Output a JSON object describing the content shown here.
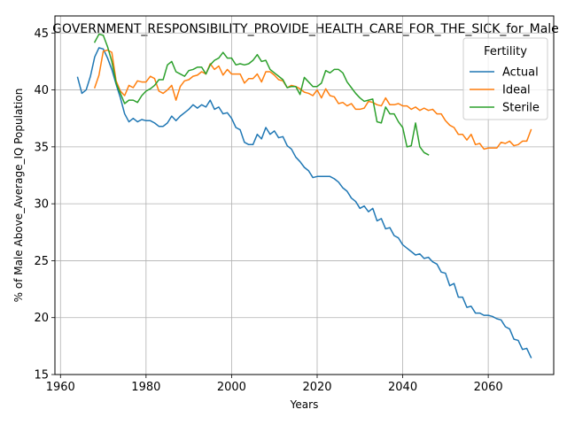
{
  "chart_data": {
    "type": "line",
    "title": "GOVERNMENT_RESPONSIBILITY_PROVIDE_HEALTH_CARE_FOR_THE_SICK_for_Male",
    "xlabel": "Years",
    "ylabel": "% of Male Above_Average_IQ Population",
    "xlim": [
      1958.7,
      2075.3
    ],
    "ylim": [
      15,
      46.5
    ],
    "xticks": [
      1960,
      1980,
      2000,
      2020,
      2040,
      2060
    ],
    "yticks": [
      15,
      20,
      25,
      30,
      35,
      40,
      45
    ],
    "grid": true,
    "legend": {
      "title": "Fertility",
      "placement": "top-right"
    },
    "series": [
      {
        "name": "Actual",
        "color": "#1f77b4",
        "points": [
          [
            1964,
            41.1
          ],
          [
            1965,
            39.7
          ],
          [
            1966,
            40.0
          ],
          [
            1967,
            41.2
          ],
          [
            1968,
            42.9
          ],
          [
            1969,
            43.7
          ],
          [
            1970,
            43.6
          ],
          [
            1971,
            42.8
          ],
          [
            1972,
            41.8
          ],
          [
            1973,
            40.5
          ],
          [
            1974,
            39.3
          ],
          [
            1975,
            37.9
          ],
          [
            1976,
            37.2
          ],
          [
            1977,
            37.5
          ],
          [
            1978,
            37.2
          ],
          [
            1979,
            37.4
          ],
          [
            1980,
            37.3
          ],
          [
            1981,
            37.3
          ],
          [
            1982,
            37.1
          ],
          [
            1983,
            36.8
          ],
          [
            1984,
            36.8
          ],
          [
            1985,
            37.1
          ],
          [
            1986,
            37.7
          ],
          [
            1987,
            37.3
          ],
          [
            1988,
            37.7
          ],
          [
            1989,
            38.0
          ],
          [
            1990,
            38.3
          ],
          [
            1991,
            38.7
          ],
          [
            1992,
            38.4
          ],
          [
            1993,
            38.7
          ],
          [
            1994,
            38.5
          ],
          [
            1995,
            39.1
          ],
          [
            1996,
            38.3
          ],
          [
            1997,
            38.5
          ],
          [
            1998,
            37.9
          ],
          [
            1999,
            38.0
          ],
          [
            2000,
            37.5
          ],
          [
            2001,
            36.7
          ],
          [
            2002,
            36.5
          ],
          [
            2003,
            35.4
          ],
          [
            2004,
            35.2
          ],
          [
            2005,
            35.2
          ],
          [
            2006,
            36.1
          ],
          [
            2007,
            35.7
          ],
          [
            2008,
            36.7
          ],
          [
            2009,
            36.1
          ],
          [
            2010,
            36.4
          ],
          [
            2011,
            35.8
          ],
          [
            2012,
            35.9
          ],
          [
            2013,
            35.1
          ],
          [
            2014,
            34.8
          ],
          [
            2015,
            34.1
          ],
          [
            2016,
            33.7
          ],
          [
            2017,
            33.2
          ],
          [
            2018,
            32.9
          ],
          [
            2019,
            32.3
          ],
          [
            2020,
            32.4
          ],
          [
            2021,
            32.4
          ],
          [
            2022,
            32.4
          ],
          [
            2023,
            32.4
          ],
          [
            2024,
            32.2
          ],
          [
            2025,
            31.9
          ],
          [
            2026,
            31.4
          ],
          [
            2027,
            31.1
          ],
          [
            2028,
            30.5
          ],
          [
            2029,
            30.2
          ],
          [
            2030,
            29.6
          ],
          [
            2031,
            29.8
          ],
          [
            2032,
            29.3
          ],
          [
            2033,
            29.6
          ],
          [
            2034,
            28.5
          ],
          [
            2035,
            28.7
          ],
          [
            2036,
            27.8
          ],
          [
            2037,
            27.9
          ],
          [
            2038,
            27.2
          ],
          [
            2039,
            27.0
          ],
          [
            2040,
            26.4
          ],
          [
            2041,
            26.1
          ],
          [
            2042,
            25.8
          ],
          [
            2043,
            25.5
          ],
          [
            2044,
            25.6
          ],
          [
            2045,
            25.2
          ],
          [
            2046,
            25.3
          ],
          [
            2047,
            24.9
          ],
          [
            2048,
            24.7
          ],
          [
            2049,
            24.0
          ],
          [
            2050,
            23.9
          ],
          [
            2051,
            22.8
          ],
          [
            2052,
            23.0
          ],
          [
            2053,
            21.8
          ],
          [
            2054,
            21.8
          ],
          [
            2055,
            20.9
          ],
          [
            2056,
            21.0
          ],
          [
            2057,
            20.4
          ],
          [
            2058,
            20.4
          ],
          [
            2059,
            20.2
          ],
          [
            2060,
            20.2
          ],
          [
            2061,
            20.1
          ],
          [
            2062,
            19.9
          ],
          [
            2063,
            19.8
          ],
          [
            2064,
            19.2
          ],
          [
            2065,
            19.0
          ],
          [
            2066,
            18.1
          ],
          [
            2067,
            18.0
          ],
          [
            2068,
            17.2
          ],
          [
            2069,
            17.3
          ],
          [
            2070,
            16.5
          ]
        ]
      },
      {
        "name": "Ideal",
        "color": "#ff7f0e",
        "points": [
          [
            1968,
            40.2
          ],
          [
            1969,
            41.3
          ],
          [
            1970,
            43.4
          ],
          [
            1971,
            43.5
          ],
          [
            1972,
            43.3
          ],
          [
            1973,
            40.8
          ],
          [
            1974,
            39.9
          ],
          [
            1975,
            39.5
          ],
          [
            1976,
            40.4
          ],
          [
            1977,
            40.2
          ],
          [
            1978,
            40.8
          ],
          [
            1979,
            40.7
          ],
          [
            1980,
            40.7
          ],
          [
            1981,
            41.2
          ],
          [
            1982,
            41.0
          ],
          [
            1983,
            39.9
          ],
          [
            1984,
            39.7
          ],
          [
            1985,
            40.0
          ],
          [
            1986,
            40.4
          ],
          [
            1987,
            39.1
          ],
          [
            1988,
            40.3
          ],
          [
            1989,
            40.8
          ],
          [
            1990,
            40.9
          ],
          [
            1991,
            41.2
          ],
          [
            1992,
            41.3
          ],
          [
            1993,
            41.6
          ],
          [
            1994,
            41.4
          ],
          [
            1995,
            42.3
          ],
          [
            1996,
            41.8
          ],
          [
            1997,
            42.1
          ],
          [
            1998,
            41.3
          ],
          [
            1999,
            41.8
          ],
          [
            2000,
            41.4
          ],
          [
            2001,
            41.4
          ],
          [
            2002,
            41.4
          ],
          [
            2003,
            40.6
          ],
          [
            2004,
            41.0
          ],
          [
            2005,
            41.0
          ],
          [
            2006,
            41.4
          ],
          [
            2007,
            40.7
          ],
          [
            2008,
            41.6
          ],
          [
            2009,
            41.6
          ],
          [
            2010,
            41.3
          ],
          [
            2011,
            40.9
          ],
          [
            2012,
            40.8
          ],
          [
            2013,
            40.2
          ],
          [
            2014,
            40.4
          ],
          [
            2015,
            40.3
          ],
          [
            2016,
            40.1
          ],
          [
            2017,
            39.8
          ],
          [
            2018,
            39.7
          ],
          [
            2019,
            39.5
          ],
          [
            2020,
            40.0
          ],
          [
            2021,
            39.3
          ],
          [
            2022,
            40.1
          ],
          [
            2023,
            39.5
          ],
          [
            2024,
            39.4
          ],
          [
            2025,
            38.8
          ],
          [
            2026,
            38.9
          ],
          [
            2027,
            38.6
          ],
          [
            2028,
            38.8
          ],
          [
            2029,
            38.3
          ],
          [
            2030,
            38.3
          ],
          [
            2031,
            38.4
          ],
          [
            2032,
            39.0
          ],
          [
            2033,
            38.9
          ],
          [
            2034,
            38.7
          ],
          [
            2035,
            38.6
          ],
          [
            2036,
            39.3
          ],
          [
            2037,
            38.7
          ],
          [
            2038,
            38.7
          ],
          [
            2039,
            38.8
          ],
          [
            2040,
            38.6
          ],
          [
            2041,
            38.6
          ],
          [
            2042,
            38.3
          ],
          [
            2043,
            38.5
          ],
          [
            2044,
            38.2
          ],
          [
            2045,
            38.4
          ],
          [
            2046,
            38.2
          ],
          [
            2047,
            38.3
          ],
          [
            2048,
            37.9
          ],
          [
            2049,
            37.9
          ],
          [
            2050,
            37.3
          ],
          [
            2051,
            36.9
          ],
          [
            2052,
            36.7
          ],
          [
            2053,
            36.1
          ],
          [
            2054,
            36.1
          ],
          [
            2055,
            35.6
          ],
          [
            2056,
            36.1
          ],
          [
            2057,
            35.2
          ],
          [
            2058,
            35.3
          ],
          [
            2059,
            34.8
          ],
          [
            2060,
            34.9
          ],
          [
            2061,
            34.9
          ],
          [
            2062,
            34.9
          ],
          [
            2063,
            35.4
          ],
          [
            2064,
            35.3
          ],
          [
            2065,
            35.5
          ],
          [
            2066,
            35.1
          ],
          [
            2067,
            35.2
          ],
          [
            2068,
            35.5
          ],
          [
            2069,
            35.5
          ],
          [
            2070,
            36.5
          ]
        ]
      },
      {
        "name": "Sterile",
        "color": "#2ca02c",
        "points": [
          [
            1968,
            44.2
          ],
          [
            1969,
            44.9
          ],
          [
            1970,
            44.8
          ],
          [
            1971,
            43.8
          ],
          [
            1972,
            42.5
          ],
          [
            1973,
            40.6
          ],
          [
            1974,
            39.7
          ],
          [
            1975,
            38.8
          ],
          [
            1976,
            39.1
          ],
          [
            1977,
            39.1
          ],
          [
            1978,
            38.9
          ],
          [
            1979,
            39.5
          ],
          [
            1980,
            39.9
          ],
          [
            1981,
            40.1
          ],
          [
            1982,
            40.4
          ],
          [
            1983,
            40.9
          ],
          [
            1984,
            40.9
          ],
          [
            1985,
            42.2
          ],
          [
            1986,
            42.5
          ],
          [
            1987,
            41.6
          ],
          [
            1988,
            41.4
          ],
          [
            1989,
            41.2
          ],
          [
            1990,
            41.7
          ],
          [
            1991,
            41.8
          ],
          [
            1992,
            42.0
          ],
          [
            1993,
            42.0
          ],
          [
            1994,
            41.4
          ],
          [
            1995,
            42.2
          ],
          [
            1996,
            42.6
          ],
          [
            1997,
            42.8
          ],
          [
            1998,
            43.3
          ],
          [
            1999,
            42.8
          ],
          [
            2000,
            42.8
          ],
          [
            2001,
            42.2
          ],
          [
            2002,
            42.3
          ],
          [
            2003,
            42.2
          ],
          [
            2004,
            42.3
          ],
          [
            2005,
            42.6
          ],
          [
            2006,
            43.1
          ],
          [
            2007,
            42.5
          ],
          [
            2008,
            42.6
          ],
          [
            2009,
            41.8
          ],
          [
            2010,
            41.5
          ],
          [
            2011,
            41.2
          ],
          [
            2012,
            40.9
          ],
          [
            2013,
            40.2
          ],
          [
            2014,
            40.3
          ],
          [
            2015,
            40.3
          ],
          [
            2016,
            39.6
          ],
          [
            2017,
            41.1
          ],
          [
            2018,
            40.7
          ],
          [
            2019,
            40.3
          ],
          [
            2020,
            40.3
          ],
          [
            2021,
            40.6
          ],
          [
            2022,
            41.7
          ],
          [
            2023,
            41.5
          ],
          [
            2024,
            41.8
          ],
          [
            2025,
            41.8
          ],
          [
            2026,
            41.5
          ],
          [
            2027,
            40.7
          ],
          [
            2028,
            40.2
          ],
          [
            2029,
            39.7
          ],
          [
            2030,
            39.3
          ],
          [
            2031,
            39.0
          ],
          [
            2032,
            39.1
          ],
          [
            2033,
            39.2
          ],
          [
            2034,
            37.2
          ],
          [
            2035,
            37.1
          ],
          [
            2036,
            38.5
          ],
          [
            2037,
            37.9
          ],
          [
            2038,
            37.9
          ],
          [
            2039,
            37.2
          ],
          [
            2040,
            36.7
          ],
          [
            2041,
            35.0
          ],
          [
            2042,
            35.1
          ],
          [
            2043,
            37.1
          ],
          [
            2044,
            35.0
          ],
          [
            2045,
            34.5
          ],
          [
            2046,
            34.3
          ]
        ]
      }
    ]
  }
}
